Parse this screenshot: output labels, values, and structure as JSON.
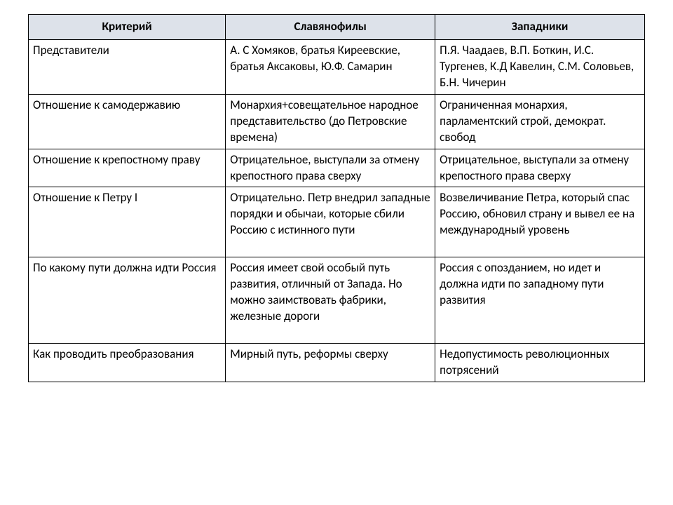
{
  "table": {
    "type": "table",
    "background_color": "#ffffff",
    "header_bg": "#dde2ea",
    "border_color": "#000000",
    "font_family": "Calibri",
    "font_size_pt": 13,
    "columns": [
      {
        "label": "Критерий",
        "width_pct": 32
      },
      {
        "label": "Славянофилы",
        "width_pct": 34
      },
      {
        "label": "Западники",
        "width_pct": 34
      }
    ],
    "rows": [
      {
        "criterion": "Представители",
        "slav": "А. С Хомяков, братья Киреевские, братья Аксаковы, Ю.Ф. Самарин",
        "west": "П.Я. Чаадаев, В.П. Боткин, И.С. Тургенев, К.Д Кавелин, С.М. Соловьев, Б.Н. Чичерин"
      },
      {
        "criterion": "Отношение к самодержавию",
        "slav": "Монархия+совещательное народное представительство (до Петровские времена)",
        "west": "Ограниченная монархия, парламентский строй, демократ. свобод"
      },
      {
        "criterion": "Отношение к крепостному праву",
        "slav": "Отрицательное, выступали за отмену крепостного права сверху",
        "west": "Отрицательное, выступали за отмену крепостного права сверху"
      },
      {
        "criterion": "Отношение к Петру I",
        "slav": "Отрицательно. Петр внедрил западные порядки и обычаи, которые сбили Россию с истинного пути",
        "west": "Возвеличивание Петра, который спас Россию, обновил страну и вывел ее на международный уровень",
        "tall": true
      },
      {
        "criterion": "По какому пути должна идти Россия",
        "slav": "Россия имеет свой особый путь развития, отличный от Запада. Но можно заимствовать фабрики, железные дороги",
        "west": "Россия с опозданием, но идет и должна идти по западному пути развития",
        "tall": true
      },
      {
        "criterion": "Как проводить преобразования",
        "slav": "Мирный путь, реформы сверху",
        "west": "Недопустимость революционных потрясений"
      }
    ]
  }
}
